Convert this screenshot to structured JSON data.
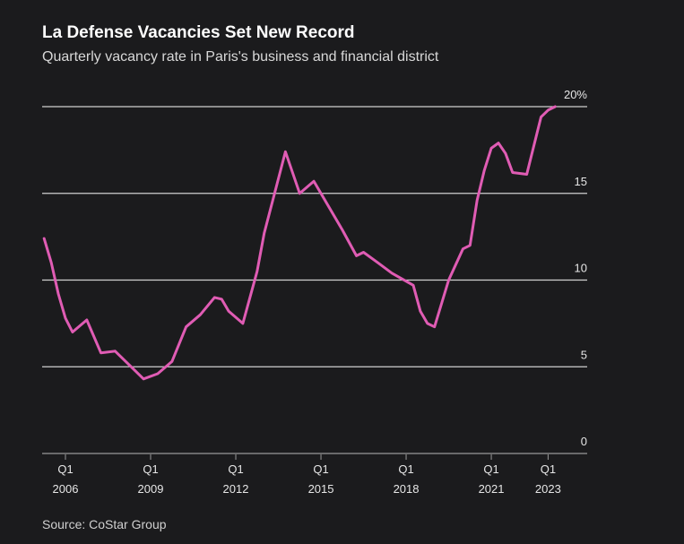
{
  "chart_data": {
    "type": "line",
    "title": "La Defense Vacancies Set New Record",
    "subtitle": "Quarterly vacancy rate in Paris's business and financial district",
    "source": "Source: CoStar Group",
    "xlabel": "",
    "ylabel": "",
    "ylim": [
      0,
      20
    ],
    "xlim": [
      2005.25,
      2024.25
    ],
    "grid": true,
    "y_ticks": [
      {
        "value": 0,
        "label": "0"
      },
      {
        "value": 5,
        "label": "5"
      },
      {
        "value": 10,
        "label": "10"
      },
      {
        "value": 15,
        "label": "15"
      },
      {
        "value": 20,
        "label": "20%"
      }
    ],
    "x_ticks": [
      {
        "value": 2006,
        "line1": "Q1",
        "line2": "2006"
      },
      {
        "value": 2009,
        "line1": "Q1",
        "line2": "2009"
      },
      {
        "value": 2012,
        "line1": "Q1",
        "line2": "2012"
      },
      {
        "value": 2015,
        "line1": "Q1",
        "line2": "2015"
      },
      {
        "value": 2018,
        "line1": "Q1",
        "line2": "2018"
      },
      {
        "value": 2021,
        "line1": "Q1",
        "line2": "2021"
      },
      {
        "value": 2023,
        "line1": "Q1",
        "line2": "2023"
      }
    ],
    "series": [
      {
        "name": "Vacancy rate",
        "color": "#e05cb4",
        "x": [
          2005.25,
          2005.5,
          2005.75,
          2006.0,
          2006.25,
          2006.75,
          2007.25,
          2007.75,
          2008.25,
          2008.75,
          2009.25,
          2009.75,
          2010.25,
          2010.75,
          2011.25,
          2011.5,
          2011.75,
          2012.25,
          2012.75,
          2013.0,
          2013.75,
          2014.25,
          2014.75,
          2015.25,
          2015.75,
          2016.25,
          2016.5,
          2017.0,
          2017.5,
          2018.25,
          2018.5,
          2018.75,
          2019.0,
          2019.5,
          2020.0,
          2020.25,
          2020.5,
          2020.75,
          2021.0,
          2021.25,
          2021.5,
          2021.75,
          2022.25,
          2022.75,
          2023.0,
          2023.25
        ],
        "values": [
          12.4,
          11.0,
          9.2,
          7.8,
          7.0,
          7.7,
          5.8,
          5.9,
          5.1,
          4.3,
          4.6,
          5.3,
          7.3,
          8.0,
          9.0,
          8.9,
          8.2,
          7.5,
          10.5,
          12.7,
          17.4,
          15.0,
          15.7,
          14.3,
          12.9,
          11.4,
          11.6,
          11.0,
          10.4,
          9.7,
          8.2,
          7.5,
          7.3,
          10.0,
          11.8,
          12.0,
          14.6,
          16.3,
          17.6,
          17.9,
          17.3,
          16.2,
          16.1,
          19.4,
          19.8,
          20.0
        ]
      }
    ]
  }
}
